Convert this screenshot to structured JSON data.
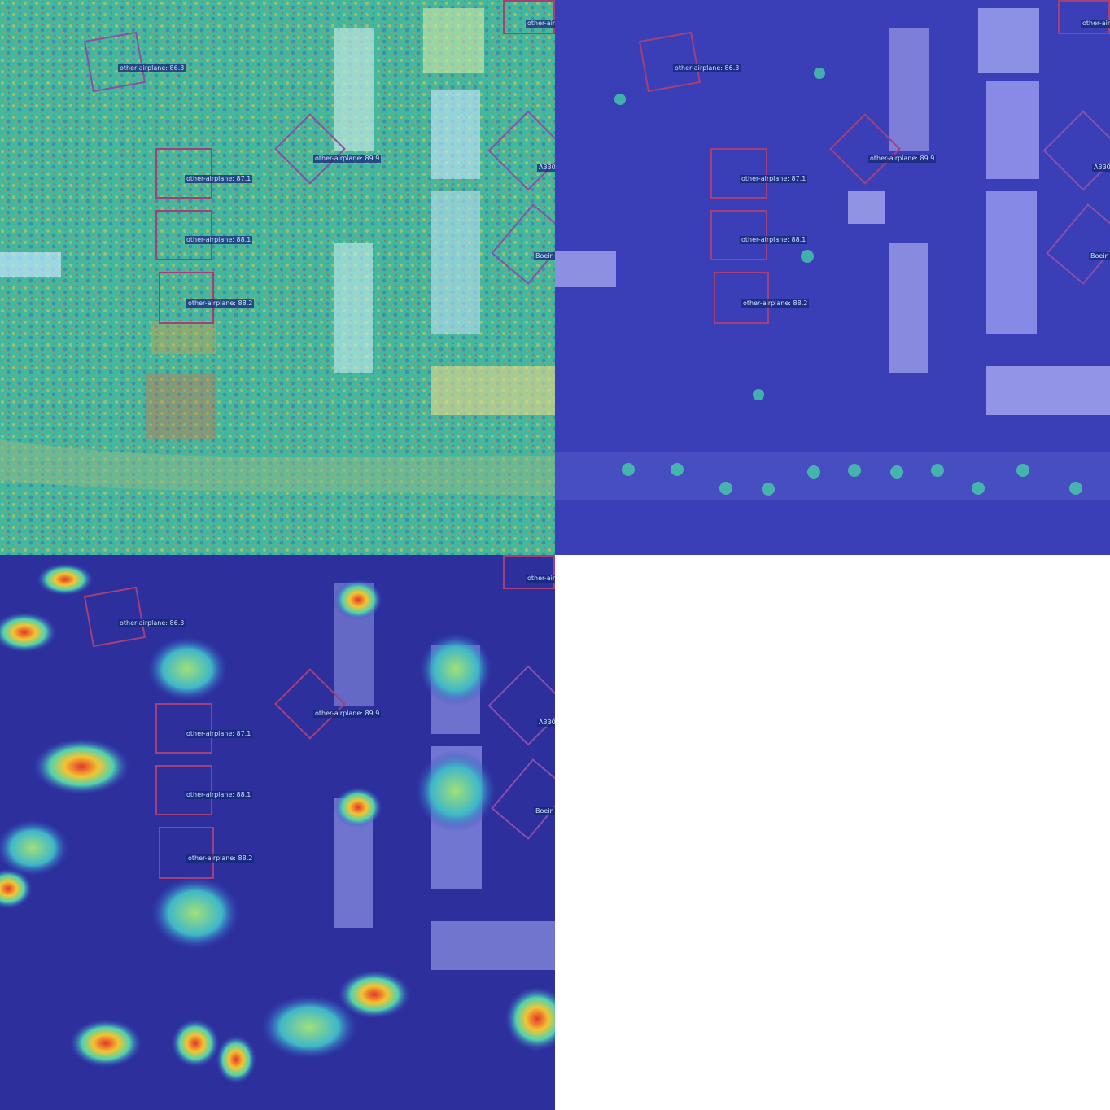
{
  "panels": [
    {
      "name": "heatmap-fine",
      "colormap": "jet-dense"
    },
    {
      "name": "heatmap-sparse",
      "colormap": "jet-low"
    },
    {
      "name": "heatmap-coarse",
      "colormap": "jet-blobs"
    }
  ],
  "detections": [
    {
      "label": "other-airplane: 86.3"
    },
    {
      "label": "other-airplane: 89.9"
    },
    {
      "label": "other-airplane: 87.1"
    },
    {
      "label": "other-airplane: 88.1"
    },
    {
      "label": "other-airplane: 88.2"
    },
    {
      "label": "A330"
    },
    {
      "label": "Boein"
    },
    {
      "label": "other-air"
    }
  ],
  "colors": {
    "box": "#a2407a",
    "box_rot": "#8a4fa8",
    "label_bg": "#14287a"
  }
}
